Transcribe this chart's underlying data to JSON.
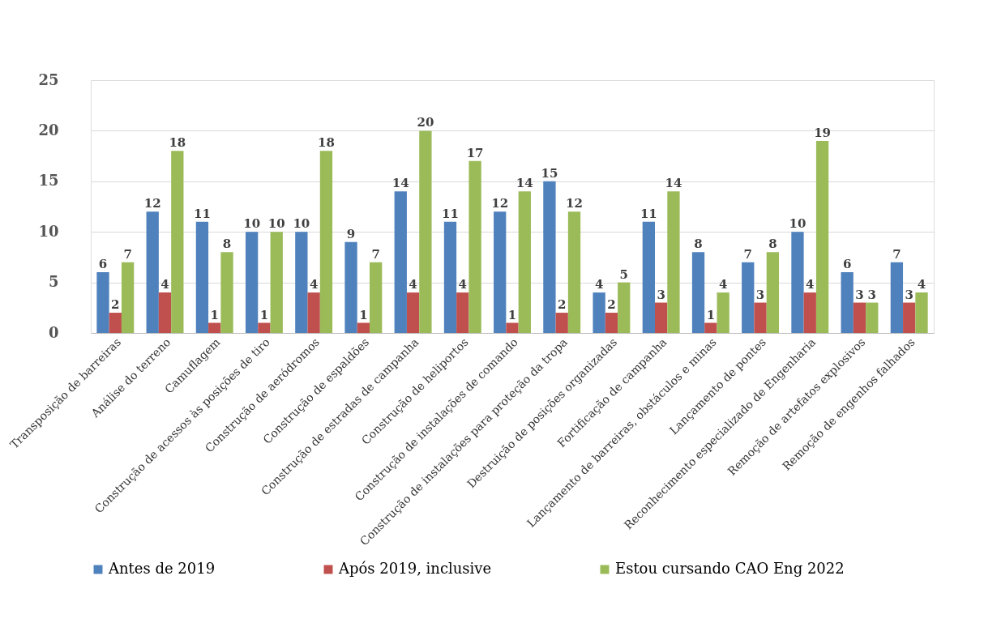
{
  "chart_data": {
    "type": "bar",
    "categories": [
      "Transposição de barreiras",
      "Análise do terreno",
      "Camuflagem",
      "Construção de acessos às posições de tiro",
      "Construção de aeródromos",
      "Construção de espaldões",
      "Construção de estradas de campanha",
      "Construção de heliportos",
      "Construção de instalações de comando",
      "Construção de instalações para proteção da tropa",
      "Destruição de posições organizadas",
      "Fortificação de campanha",
      "Lançamento de barreiras, obstáculos e minas",
      "Lançamento de pontes",
      "Reconhecimento especializado de Engenharia",
      "Remoção de artefatos explosivos",
      "Remoção de engenhos falhados"
    ],
    "series": [
      {
        "name": "Antes de 2019",
        "color": "#4f81bd",
        "values": [
          6,
          12,
          11,
          10,
          10,
          9,
          14,
          11,
          12,
          15,
          4,
          11,
          8,
          7,
          10,
          6,
          7
        ]
      },
      {
        "name": "Após 2019, inclusive",
        "color": "#c0504d",
        "values": [
          2,
          4,
          1,
          1,
          4,
          1,
          4,
          4,
          1,
          2,
          2,
          3,
          1,
          3,
          4,
          3,
          3
        ]
      },
      {
        "name": "Estou cursando CAO Eng 2022",
        "color": "#9bbb59",
        "values": [
          7,
          18,
          8,
          10,
          18,
          7,
          20,
          17,
          14,
          12,
          5,
          14,
          4,
          8,
          19,
          3,
          4
        ]
      }
    ],
    "ylim": [
      0,
      25
    ],
    "yticks": [
      0,
      5,
      10,
      15,
      20,
      25
    ],
    "grid": "y",
    "legend": "bottom",
    "data_labels": true
  }
}
